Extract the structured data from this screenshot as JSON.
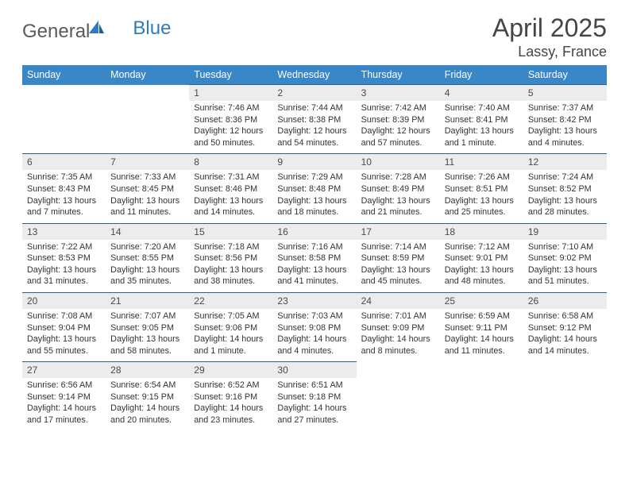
{
  "brand": {
    "word1": "General",
    "word2": "Blue"
  },
  "title": "April 2025",
  "location": "Lassy, France",
  "colors": {
    "header_bg": "#3a87c8",
    "header_text": "#ffffff",
    "daynum_bg": "#ececec",
    "daynum_text": "#4a4a4a",
    "rule": "#2d5f88",
    "title_text": "#454545",
    "body_text": "#333333",
    "logo_gray": "#5a5a5a",
    "logo_blue": "#2e7cbf"
  },
  "fonts": {
    "title_size_pt": 24,
    "location_size_pt": 13,
    "dayhead_size_pt": 9.5,
    "body_size_pt": 8
  },
  "weekdays": [
    "Sunday",
    "Monday",
    "Tuesday",
    "Wednesday",
    "Thursday",
    "Friday",
    "Saturday"
  ],
  "weeks": [
    [
      null,
      null,
      {
        "n": "1",
        "sr": "Sunrise: 7:46 AM",
        "ss": "Sunset: 8:36 PM",
        "d1": "Daylight: 12 hours",
        "d2": "and 50 minutes."
      },
      {
        "n": "2",
        "sr": "Sunrise: 7:44 AM",
        "ss": "Sunset: 8:38 PM",
        "d1": "Daylight: 12 hours",
        "d2": "and 54 minutes."
      },
      {
        "n": "3",
        "sr": "Sunrise: 7:42 AM",
        "ss": "Sunset: 8:39 PM",
        "d1": "Daylight: 12 hours",
        "d2": "and 57 minutes."
      },
      {
        "n": "4",
        "sr": "Sunrise: 7:40 AM",
        "ss": "Sunset: 8:41 PM",
        "d1": "Daylight: 13 hours",
        "d2": "and 1 minute."
      },
      {
        "n": "5",
        "sr": "Sunrise: 7:37 AM",
        "ss": "Sunset: 8:42 PM",
        "d1": "Daylight: 13 hours",
        "d2": "and 4 minutes."
      }
    ],
    [
      {
        "n": "6",
        "sr": "Sunrise: 7:35 AM",
        "ss": "Sunset: 8:43 PM",
        "d1": "Daylight: 13 hours",
        "d2": "and 7 minutes."
      },
      {
        "n": "7",
        "sr": "Sunrise: 7:33 AM",
        "ss": "Sunset: 8:45 PM",
        "d1": "Daylight: 13 hours",
        "d2": "and 11 minutes."
      },
      {
        "n": "8",
        "sr": "Sunrise: 7:31 AM",
        "ss": "Sunset: 8:46 PM",
        "d1": "Daylight: 13 hours",
        "d2": "and 14 minutes."
      },
      {
        "n": "9",
        "sr": "Sunrise: 7:29 AM",
        "ss": "Sunset: 8:48 PM",
        "d1": "Daylight: 13 hours",
        "d2": "and 18 minutes."
      },
      {
        "n": "10",
        "sr": "Sunrise: 7:28 AM",
        "ss": "Sunset: 8:49 PM",
        "d1": "Daylight: 13 hours",
        "d2": "and 21 minutes."
      },
      {
        "n": "11",
        "sr": "Sunrise: 7:26 AM",
        "ss": "Sunset: 8:51 PM",
        "d1": "Daylight: 13 hours",
        "d2": "and 25 minutes."
      },
      {
        "n": "12",
        "sr": "Sunrise: 7:24 AM",
        "ss": "Sunset: 8:52 PM",
        "d1": "Daylight: 13 hours",
        "d2": "and 28 minutes."
      }
    ],
    [
      {
        "n": "13",
        "sr": "Sunrise: 7:22 AM",
        "ss": "Sunset: 8:53 PM",
        "d1": "Daylight: 13 hours",
        "d2": "and 31 minutes."
      },
      {
        "n": "14",
        "sr": "Sunrise: 7:20 AM",
        "ss": "Sunset: 8:55 PM",
        "d1": "Daylight: 13 hours",
        "d2": "and 35 minutes."
      },
      {
        "n": "15",
        "sr": "Sunrise: 7:18 AM",
        "ss": "Sunset: 8:56 PM",
        "d1": "Daylight: 13 hours",
        "d2": "and 38 minutes."
      },
      {
        "n": "16",
        "sr": "Sunrise: 7:16 AM",
        "ss": "Sunset: 8:58 PM",
        "d1": "Daylight: 13 hours",
        "d2": "and 41 minutes."
      },
      {
        "n": "17",
        "sr": "Sunrise: 7:14 AM",
        "ss": "Sunset: 8:59 PM",
        "d1": "Daylight: 13 hours",
        "d2": "and 45 minutes."
      },
      {
        "n": "18",
        "sr": "Sunrise: 7:12 AM",
        "ss": "Sunset: 9:01 PM",
        "d1": "Daylight: 13 hours",
        "d2": "and 48 minutes."
      },
      {
        "n": "19",
        "sr": "Sunrise: 7:10 AM",
        "ss": "Sunset: 9:02 PM",
        "d1": "Daylight: 13 hours",
        "d2": "and 51 minutes."
      }
    ],
    [
      {
        "n": "20",
        "sr": "Sunrise: 7:08 AM",
        "ss": "Sunset: 9:04 PM",
        "d1": "Daylight: 13 hours",
        "d2": "and 55 minutes."
      },
      {
        "n": "21",
        "sr": "Sunrise: 7:07 AM",
        "ss": "Sunset: 9:05 PM",
        "d1": "Daylight: 13 hours",
        "d2": "and 58 minutes."
      },
      {
        "n": "22",
        "sr": "Sunrise: 7:05 AM",
        "ss": "Sunset: 9:06 PM",
        "d1": "Daylight: 14 hours",
        "d2": "and 1 minute."
      },
      {
        "n": "23",
        "sr": "Sunrise: 7:03 AM",
        "ss": "Sunset: 9:08 PM",
        "d1": "Daylight: 14 hours",
        "d2": "and 4 minutes."
      },
      {
        "n": "24",
        "sr": "Sunrise: 7:01 AM",
        "ss": "Sunset: 9:09 PM",
        "d1": "Daylight: 14 hours",
        "d2": "and 8 minutes."
      },
      {
        "n": "25",
        "sr": "Sunrise: 6:59 AM",
        "ss": "Sunset: 9:11 PM",
        "d1": "Daylight: 14 hours",
        "d2": "and 11 minutes."
      },
      {
        "n": "26",
        "sr": "Sunrise: 6:58 AM",
        "ss": "Sunset: 9:12 PM",
        "d1": "Daylight: 14 hours",
        "d2": "and 14 minutes."
      }
    ],
    [
      {
        "n": "27",
        "sr": "Sunrise: 6:56 AM",
        "ss": "Sunset: 9:14 PM",
        "d1": "Daylight: 14 hours",
        "d2": "and 17 minutes."
      },
      {
        "n": "28",
        "sr": "Sunrise: 6:54 AM",
        "ss": "Sunset: 9:15 PM",
        "d1": "Daylight: 14 hours",
        "d2": "and 20 minutes."
      },
      {
        "n": "29",
        "sr": "Sunrise: 6:52 AM",
        "ss": "Sunset: 9:16 PM",
        "d1": "Daylight: 14 hours",
        "d2": "and 23 minutes."
      },
      {
        "n": "30",
        "sr": "Sunrise: 6:51 AM",
        "ss": "Sunset: 9:18 PM",
        "d1": "Daylight: 14 hours",
        "d2": "and 27 minutes."
      },
      null,
      null,
      null
    ]
  ]
}
